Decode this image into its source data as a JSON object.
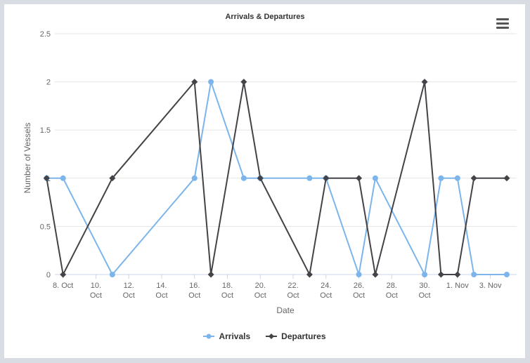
{
  "chart_data": {
    "type": "line",
    "title": "Arrivals & Departures",
    "xlabel": "Date",
    "ylabel": "Number of Vessels",
    "ylim": [
      0,
      2.5
    ],
    "y_ticks": [
      "0",
      "0.5",
      "1",
      "1.5",
      "2",
      "2.5"
    ],
    "x_ticks": [
      {
        "day": 1,
        "lines": [
          "8. Oct"
        ]
      },
      {
        "day": 3,
        "lines": [
          "10.",
          "Oct"
        ]
      },
      {
        "day": 5,
        "lines": [
          "12.",
          "Oct"
        ]
      },
      {
        "day": 7,
        "lines": [
          "14.",
          "Oct"
        ]
      },
      {
        "day": 9,
        "lines": [
          "16.",
          "Oct"
        ]
      },
      {
        "day": 11,
        "lines": [
          "18.",
          "Oct"
        ]
      },
      {
        "day": 13,
        "lines": [
          "20.",
          "Oct"
        ]
      },
      {
        "day": 15,
        "lines": [
          "22.",
          "Oct"
        ]
      },
      {
        "day": 17,
        "lines": [
          "24.",
          "Oct"
        ]
      },
      {
        "day": 19,
        "lines": [
          "26.",
          "Oct"
        ]
      },
      {
        "day": 21,
        "lines": [
          "28.",
          "Oct"
        ]
      },
      {
        "day": 23,
        "lines": [
          "30.",
          "Oct"
        ]
      },
      {
        "day": 25,
        "lines": [
          "1. Nov"
        ]
      },
      {
        "day": 27,
        "lines": [
          "3. Nov"
        ]
      }
    ],
    "x_range_days": [
      0.5,
      28.6
    ],
    "grid": true,
    "legend_position": "bottom-center",
    "series": [
      {
        "name": "Arrivals",
        "color": "#7cb5ec",
        "marker": "circle",
        "points": [
          [
            0,
            1
          ],
          [
            1,
            1
          ],
          [
            4,
            0
          ],
          [
            9,
            1
          ],
          [
            10,
            2
          ],
          [
            12,
            1
          ],
          [
            13,
            1
          ],
          [
            16,
            1
          ],
          [
            17,
            1
          ],
          [
            19,
            0
          ],
          [
            20,
            1
          ],
          [
            23,
            0
          ],
          [
            24,
            1
          ],
          [
            25,
            1
          ],
          [
            26,
            0
          ],
          [
            28,
            0
          ]
        ]
      },
      {
        "name": "Departures",
        "color": "#434348",
        "marker": "diamond",
        "points": [
          [
            0,
            1
          ],
          [
            1,
            0
          ],
          [
            4,
            1
          ],
          [
            9,
            2
          ],
          [
            10,
            0
          ],
          [
            12,
            2
          ],
          [
            13,
            1
          ],
          [
            16,
            0
          ],
          [
            17,
            1
          ],
          [
            19,
            1
          ],
          [
            20,
            0
          ],
          [
            23,
            2
          ],
          [
            24,
            0
          ],
          [
            25,
            0
          ],
          [
            26,
            1
          ],
          [
            28,
            1
          ]
        ]
      }
    ]
  }
}
